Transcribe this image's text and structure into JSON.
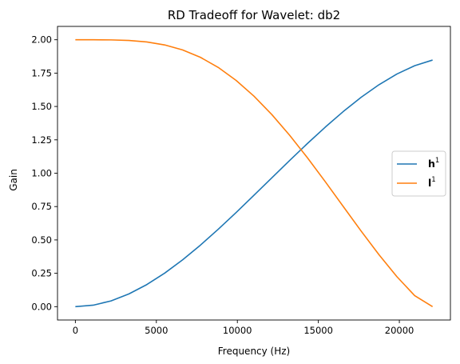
{
  "chart_data": {
    "type": "line",
    "title": "RD Tradeoff for Wavelet: db2",
    "xlabel": "Frequency (Hz)",
    "ylabel": "Gain",
    "xlim": [
      -1102.5,
      23152.5
    ],
    "ylim": [
      -0.1,
      2.1
    ],
    "xticks": [
      0,
      5000,
      10000,
      15000,
      20000
    ],
    "xtick_labels": [
      "0",
      "5000",
      "10000",
      "15000",
      "20000"
    ],
    "yticks": [
      0.0,
      0.25,
      0.5,
      0.75,
      1.0,
      1.25,
      1.5,
      1.75,
      2.0
    ],
    "ytick_labels": [
      "0.00",
      "0.25",
      "0.50",
      "0.75",
      "1.00",
      "1.25",
      "1.50",
      "1.75",
      "2.00"
    ],
    "grid": false,
    "legend_position": "center-right",
    "series": [
      {
        "name": "h",
        "name_sup": "1",
        "name_bold": true,
        "color": "#1f77b4",
        "x": [
          0,
          1102.5,
          2205,
          3307.5,
          4410,
          5512.5,
          6615,
          7717.5,
          8820,
          9922.5,
          11025,
          12127.5,
          13230,
          14332.5,
          15435,
          16537.5,
          17640,
          18742.5,
          19845,
          20947.5,
          22050
        ],
        "values": [
          0.0,
          0.0111,
          0.0432,
          0.0955,
          0.1654,
          0.2511,
          0.3503,
          0.4608,
          0.5799,
          0.7053,
          0.8346,
          0.9651,
          1.0954,
          1.2233,
          1.346,
          1.462,
          1.5686,
          1.6631,
          1.7431,
          1.8055,
          1.8478
        ]
      },
      {
        "name": "l",
        "name_sup": "1",
        "name_bold": true,
        "color": "#ff7f0e",
        "x": [
          0,
          1102.5,
          2205,
          3307.5,
          4410,
          5512.5,
          6615,
          7717.5,
          8820,
          9922.5,
          11025,
          12127.5,
          13230,
          14332.5,
          15435,
          16537.5,
          17640,
          18742.5,
          19845,
          20947.5,
          22050
        ],
        "values": [
          2.0,
          1.9999,
          1.9988,
          1.9945,
          1.9834,
          1.9612,
          1.924,
          1.8685,
          1.7926,
          1.6955,
          1.5774,
          1.4395,
          1.2841,
          1.1145,
          0.9351,
          0.7505,
          0.5665,
          0.3891,
          0.2252,
          0.0826,
          0.0
        ]
      }
    ]
  }
}
